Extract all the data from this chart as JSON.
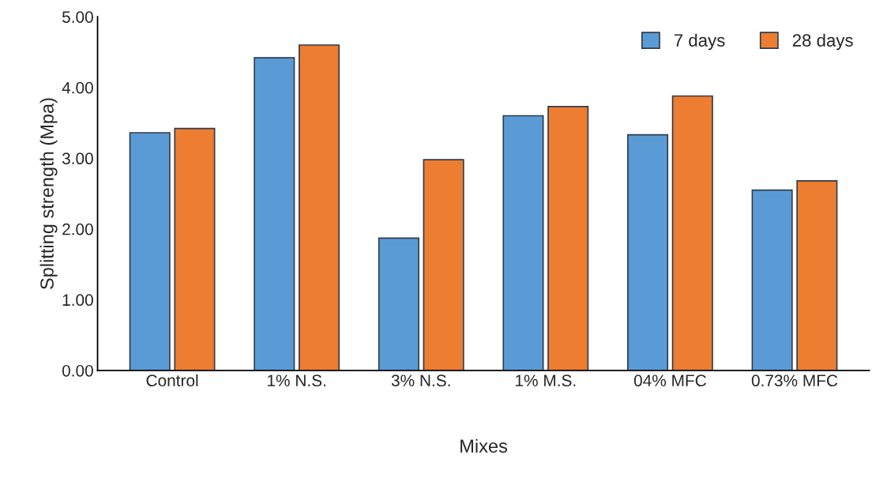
{
  "chart_data": {
    "type": "bar",
    "xlabel": "Mixes",
    "ylabel": "Splitting strength (Mpa)",
    "categories": [
      "Control",
      "1% N.S.",
      "3% N.S.",
      "1% M.S.",
      "04% MFC",
      "0.73% MFC"
    ],
    "series": [
      {
        "name": "7 days",
        "color": "#5b9bd5",
        "values": [
          3.36,
          4.42,
          1.87,
          3.6,
          3.33,
          2.55
        ]
      },
      {
        "name": "28 days",
        "color": "#ed7d31",
        "values": [
          3.42,
          4.6,
          2.98,
          3.73,
          3.88,
          2.68
        ]
      }
    ],
    "ylim": [
      0,
      5
    ],
    "yticks": [
      {
        "value": 0,
        "label": "0.00"
      },
      {
        "value": 1,
        "label": "1.00"
      },
      {
        "value": 2,
        "label": "2.00"
      },
      {
        "value": 3,
        "label": "3.00"
      },
      {
        "value": 4,
        "label": "4.00"
      },
      {
        "value": 5,
        "label": "5.00"
      }
    ],
    "grid": false,
    "legend": "top right"
  }
}
